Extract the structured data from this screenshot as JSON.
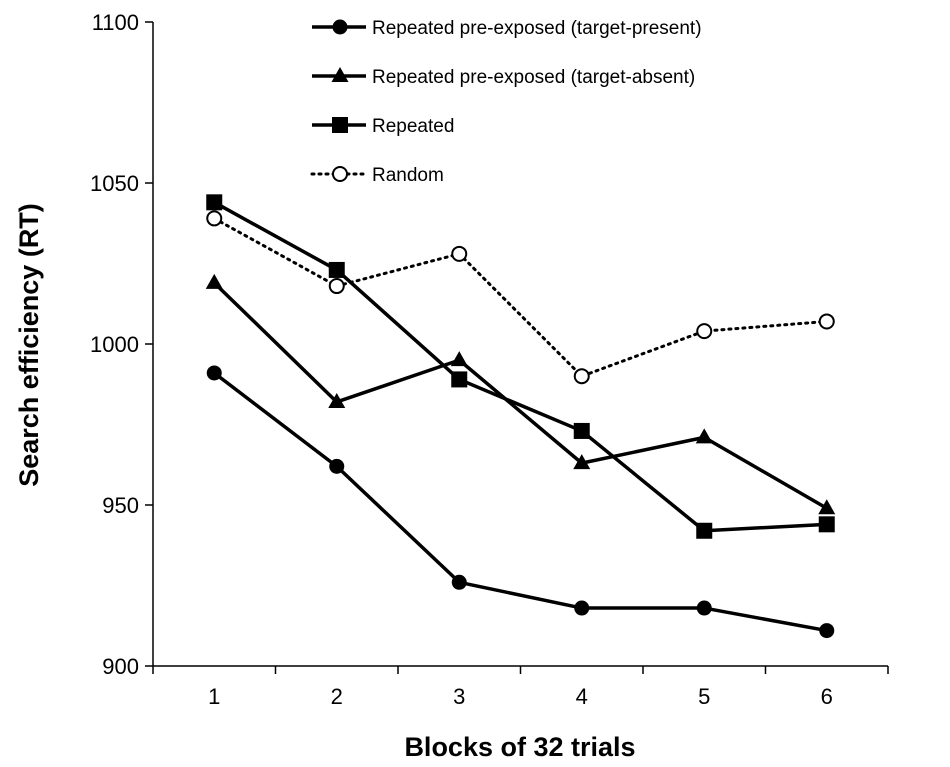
{
  "chart_data": {
    "type": "line",
    "title": "",
    "xlabel": "Blocks of 32 trials",
    "ylabel": "Search efficiency (RT)",
    "categories": [
      "1",
      "2",
      "3",
      "4",
      "5",
      "6"
    ],
    "ylim": [
      900,
      1100
    ],
    "yticks": [
      900,
      950,
      1000,
      1050,
      1100
    ],
    "grid": false,
    "legend_position": "top",
    "series": [
      {
        "name": "Repeated pre-exposed (target-present)",
        "values": [
          991,
          962,
          926,
          918,
          918,
          911
        ],
        "marker": "filled-circle",
        "line_style": "solid",
        "color": "#000000"
      },
      {
        "name": "Repeated pre-exposed (target-absent)",
        "values": [
          1019,
          982,
          995,
          963,
          971,
          949
        ],
        "marker": "filled-triangle",
        "line_style": "solid",
        "color": "#000000"
      },
      {
        "name": "Repeated",
        "values": [
          1044,
          1023,
          989,
          973,
          942,
          944
        ],
        "marker": "filled-square",
        "line_style": "solid",
        "color": "#000000"
      },
      {
        "name": "Random",
        "values": [
          1039,
          1018,
          1028,
          990,
          1004,
          1007
        ],
        "marker": "open-circle",
        "line_style": "dotted",
        "color": "#000000"
      }
    ]
  }
}
